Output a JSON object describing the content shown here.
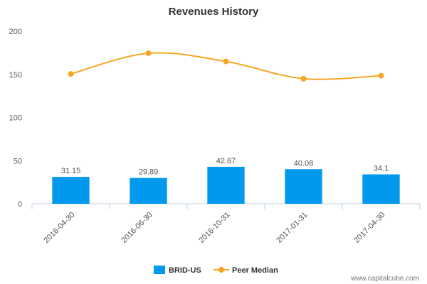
{
  "chart_data": {
    "type": "bar",
    "title": "Revenues History",
    "categories": [
      "2016-04-30",
      "2016-06-30",
      "2016-10-31",
      "2017-01-31",
      "2017-04-30"
    ],
    "series": [
      {
        "name": "BRID-US",
        "type": "bar",
        "color": "#0099ee",
        "values": [
          31.15,
          29.89,
          42.87,
          40.08,
          34.1
        ],
        "labels": [
          "31.15",
          "29.89",
          "42.87",
          "40.08",
          "34.1"
        ]
      },
      {
        "name": "Peer Median",
        "type": "line",
        "color": "#f5a623",
        "values": [
          150.5,
          174.5,
          165,
          145,
          148.5
        ]
      }
    ],
    "ylim": [
      0,
      200
    ],
    "yticks": [
      0,
      50,
      100,
      150,
      200
    ],
    "grid": false,
    "legend_position": "bottom-center"
  },
  "footer": {
    "credit": "www.capitalcube.com"
  }
}
